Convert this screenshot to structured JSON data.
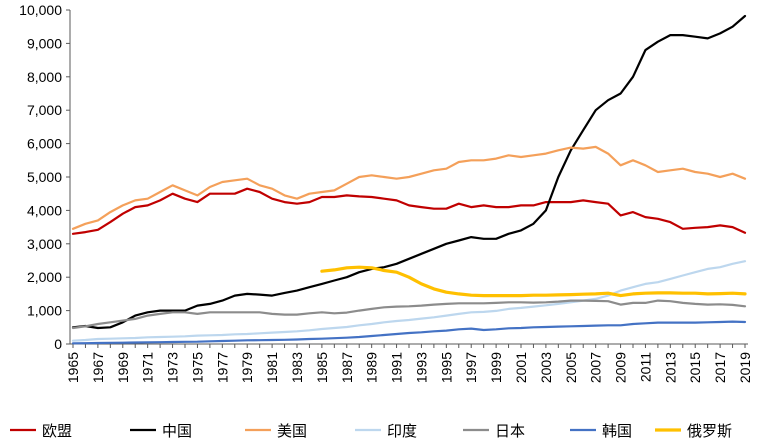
{
  "chart_data": {
    "type": "line",
    "title": "",
    "xlabel": "",
    "ylabel": "",
    "ylim": [
      0,
      10000
    ],
    "yticks": [
      "0",
      "1,000",
      "2,000",
      "3,000",
      "4,000",
      "5,000",
      "6,000",
      "7,000",
      "8,000",
      "9,000",
      "10,000"
    ],
    "xticks": [
      "1965",
      "1967",
      "1969",
      "1971",
      "1973",
      "1975",
      "1977",
      "1979",
      "1981",
      "1983",
      "1985",
      "1987",
      "1989",
      "1991",
      "1993",
      "1995",
      "1997",
      "1999",
      "2001",
      "2003",
      "2005",
      "2007",
      "2009",
      "2011",
      "2013",
      "2015",
      "2017",
      "2019"
    ],
    "x": [
      1965,
      1966,
      1967,
      1968,
      1969,
      1970,
      1971,
      1972,
      1973,
      1974,
      1975,
      1976,
      1977,
      1978,
      1979,
      1980,
      1981,
      1982,
      1983,
      1984,
      1985,
      1986,
      1987,
      1988,
      1989,
      1990,
      1991,
      1992,
      1993,
      1994,
      1995,
      1996,
      1997,
      1998,
      1999,
      2000,
      2001,
      2002,
      2003,
      2004,
      2005,
      2006,
      2007,
      2008,
      2009,
      2010,
      2011,
      2012,
      2013,
      2014,
      2015,
      2016,
      2017,
      2018,
      2019
    ],
    "grid": false,
    "legend_position": "bottom",
    "series": [
      {
        "name": "欧盟",
        "color": "#c00000",
        "values": [
          3300,
          3350,
          3420,
          3650,
          3900,
          4100,
          4150,
          4300,
          4500,
          4350,
          4250,
          4500,
          4500,
          4500,
          4650,
          4550,
          4350,
          4250,
          4200,
          4250,
          4400,
          4400,
          4450,
          4420,
          4400,
          4350,
          4300,
          4150,
          4100,
          4050,
          4050,
          4200,
          4100,
          4150,
          4100,
          4100,
          4150,
          4150,
          4250,
          4250,
          4250,
          4300,
          4250,
          4200,
          3850,
          3950,
          3800,
          3750,
          3650,
          3450,
          3480,
          3500,
          3550,
          3500,
          3330
        ]
      },
      {
        "name": "中国",
        "color": "#000000",
        "values": [
          500,
          540,
          480,
          500,
          650,
          850,
          950,
          1000,
          1000,
          1000,
          1150,
          1200,
          1300,
          1450,
          1500,
          1480,
          1450,
          1530,
          1600,
          1700,
          1800,
          1900,
          2000,
          2150,
          2250,
          2300,
          2400,
          2550,
          2700,
          2850,
          3000,
          3100,
          3200,
          3150,
          3150,
          3300,
          3400,
          3600,
          4000,
          5000,
          5800,
          6400,
          7000,
          7300,
          7500,
          8000,
          8800,
          9050,
          9250,
          9250,
          9200,
          9150,
          9300,
          9500,
          9820
        ]
      },
      {
        "name": "美国",
        "color": "#f4a05a",
        "values": [
          3450,
          3600,
          3700,
          3950,
          4150,
          4300,
          4350,
          4550,
          4750,
          4600,
          4450,
          4700,
          4850,
          4900,
          4950,
          4750,
          4650,
          4450,
          4350,
          4500,
          4550,
          4600,
          4800,
          5000,
          5050,
          5000,
          4950,
          5000,
          5100,
          5200,
          5250,
          5450,
          5500,
          5500,
          5550,
          5650,
          5600,
          5650,
          5700,
          5800,
          5880,
          5850,
          5900,
          5700,
          5350,
          5500,
          5350,
          5150,
          5200,
          5250,
          5150,
          5100,
          5000,
          5100,
          4950
        ]
      },
      {
        "name": "印度",
        "color": "#bdd7ee",
        "values": [
          100,
          120,
          150,
          160,
          170,
          180,
          200,
          210,
          220,
          230,
          250,
          260,
          270,
          290,
          300,
          320,
          340,
          360,
          380,
          410,
          450,
          480,
          510,
          560,
          600,
          650,
          690,
          720,
          760,
          800,
          850,
          900,
          950,
          960,
          990,
          1050,
          1080,
          1120,
          1160,
          1200,
          1250,
          1300,
          1350,
          1450,
          1600,
          1700,
          1800,
          1850,
          1950,
          2050,
          2150,
          2250,
          2300,
          2400,
          2480
        ]
      },
      {
        "name": "日本",
        "color": "#8c8c8c",
        "values": [
          480,
          530,
          600,
          650,
          700,
          750,
          850,
          900,
          950,
          950,
          900,
          950,
          950,
          950,
          950,
          950,
          900,
          880,
          880,
          920,
          950,
          920,
          940,
          1000,
          1050,
          1100,
          1120,
          1130,
          1150,
          1180,
          1200,
          1220,
          1220,
          1220,
          1230,
          1250,
          1250,
          1240,
          1250,
          1270,
          1300,
          1300,
          1290,
          1280,
          1180,
          1230,
          1230,
          1300,
          1280,
          1230,
          1200,
          1180,
          1190,
          1170,
          1130
        ]
      },
      {
        "name": "韩国",
        "color": "#4472c4",
        "values": [
          20,
          25,
          30,
          35,
          40,
          45,
          50,
          55,
          60,
          65,
          70,
          80,
          90,
          100,
          110,
          115,
          120,
          125,
          135,
          150,
          160,
          175,
          190,
          210,
          240,
          270,
          300,
          330,
          350,
          380,
          400,
          440,
          460,
          420,
          440,
          470,
          480,
          500,
          510,
          520,
          530,
          540,
          550,
          560,
          560,
          600,
          620,
          640,
          640,
          640,
          640,
          650,
          660,
          670,
          660
        ]
      },
      {
        "name": "俄罗斯",
        "color": "#ffc000",
        "values": [
          null,
          null,
          null,
          null,
          null,
          null,
          null,
          null,
          null,
          null,
          null,
          null,
          null,
          null,
          null,
          null,
          null,
          null,
          null,
          null,
          2180,
          2220,
          2280,
          2300,
          2280,
          2200,
          2150,
          2000,
          1800,
          1650,
          1550,
          1500,
          1460,
          1450,
          1450,
          1450,
          1450,
          1460,
          1460,
          1470,
          1480,
          1490,
          1500,
          1520,
          1450,
          1500,
          1520,
          1530,
          1530,
          1520,
          1520,
          1500,
          1510,
          1520,
          1500
        ]
      }
    ]
  }
}
